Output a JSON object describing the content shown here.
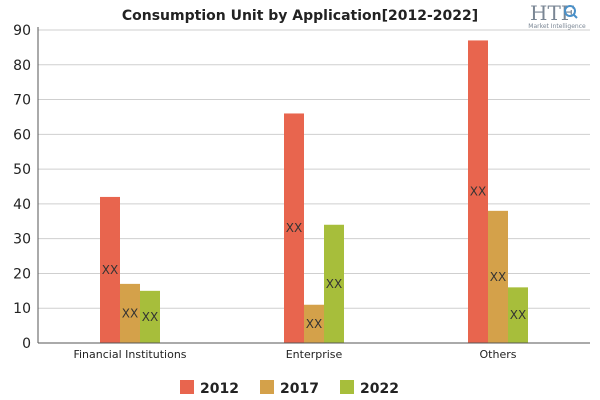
{
  "chart_data": {
    "type": "bar",
    "title": "Consumption Unit by  Application[2012-2022]",
    "categories": [
      "Financial Institutions",
      "Enterprise",
      "Others"
    ],
    "series": [
      {
        "name": "2012",
        "color": "#e8654e",
        "values": [
          42,
          66,
          87
        ],
        "labels": [
          "XX",
          "XX",
          "XX"
        ]
      },
      {
        "name": "2017",
        "color": "#d4a14a",
        "values": [
          17,
          11,
          38
        ],
        "labels": [
          "XX",
          "XX",
          "XX"
        ]
      },
      {
        "name": "2022",
        "color": "#a7be3b",
        "values": [
          15,
          34,
          16
        ],
        "labels": [
          "XX",
          "XX",
          "XX"
        ]
      }
    ],
    "ylim": [
      0,
      90
    ],
    "yticks": [
      0,
      10,
      20,
      30,
      40,
      50,
      60,
      70,
      80,
      90
    ],
    "xlabel": "",
    "ylabel": "",
    "grid": true,
    "legend": "bottom-center"
  },
  "logo": {
    "text": "HTF",
    "subtext": "Market Intelligence",
    "icon": "magnifier-icon"
  }
}
